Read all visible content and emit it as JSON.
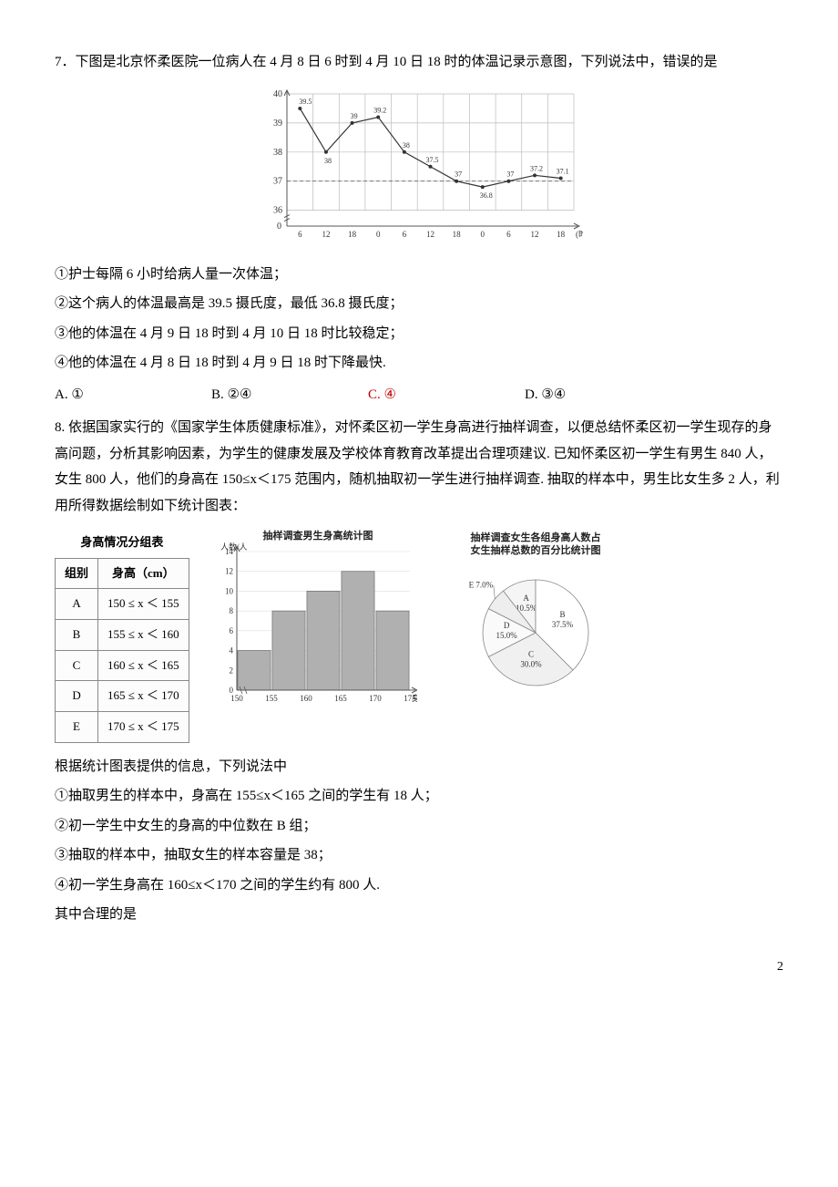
{
  "q7": {
    "prompt": "7．下图是北京怀柔医院一位病人在 4 月 8 日 6 时到 4 月 10 日 18 时的体温记录示意图，下列说法中，错误的是",
    "stmt1": "①护士每隔 6 小时给病人量一次体温；",
    "stmt2": "②这个病人的体温最高是 39.5 摄氏度，最低 36.8 摄氏度；",
    "stmt3": "③他的体温在 4 月 9 日 18 时到 4 月 10 日 18 时比较稳定；",
    "stmt4": "④他的体温在 4 月 8 日 18 时到 4 月 9 日 18 时下降最快.",
    "optA": "A. ①",
    "optB": "B. ②④",
    "optC": "C. ④",
    "optD": "D.  ③④",
    "chart": {
      "type": "line",
      "x_unit_label": "(时)",
      "x_ticks": [
        "6",
        "12",
        "18",
        "0",
        "6",
        "12",
        "18",
        "0",
        "6",
        "12",
        "18"
      ],
      "y_ticks": [
        0,
        36,
        37,
        38,
        39,
        40
      ],
      "y_baseline_dashed": 37,
      "temps": [
        39.5,
        38,
        39,
        39.2,
        38,
        37.5,
        37,
        36.8,
        37,
        37.2,
        37.1
      ],
      "labels": [
        "39.5",
        "38",
        "39",
        "39.2",
        "38",
        "37.5",
        "37",
        "36.8",
        "37",
        "37.2",
        "37.1"
      ],
      "line_color": "#333333",
      "point_radius": 2,
      "grid_color": "#bbbbbb",
      "axis_color": "#555555",
      "background_color": "#ffffff"
    }
  },
  "q8": {
    "prompt": "8. 依据国家实行的《国家学生体质健康标准》，对怀柔区初一学生身高进行抽样调查，以便总结怀柔区初一学生现存的身高问题，分析其影响因素，为学生的健康发展及学校体育教育改革提出合理项建议. 已知怀柔区初一学生有男生 840 人，女生 800 人，他们的身高在 150≤x＜175 范围内，随机抽取初一学生进行抽样调查. 抽取的样本中，男生比女生多 2 人，利用所得数据绘制如下统计图表：",
    "table": {
      "caption": "身高情况分组表",
      "cols": [
        "组别",
        "身高（cm）"
      ],
      "rows": [
        [
          "A",
          "150 ≤ x ＜ 155"
        ],
        [
          "B",
          "155 ≤ x ＜ 160"
        ],
        [
          "C",
          "160 ≤ x ＜ 165"
        ],
        [
          "D",
          "165 ≤ x ＜ 170"
        ],
        [
          "E",
          "170 ≤ x ＜ 175"
        ]
      ]
    },
    "bar_chart": {
      "type": "bar",
      "title": "抽样调查男生身高统计图",
      "x_label": "身高/cm",
      "y_label": "人数/人",
      "x_ticks": [
        "150",
        "155",
        "160",
        "165",
        "170",
        "175"
      ],
      "y_ticks": [
        0,
        2,
        4,
        6,
        8,
        10,
        12,
        14
      ],
      "values": [
        4,
        8,
        10,
        12,
        8
      ],
      "bar_color": "#b0b0b0",
      "bar_border_color": "#777777",
      "grid_color": "#cccccc",
      "axis_color": "#555555",
      "ylim": [
        0,
        14
      ],
      "bar_width": 0.95
    },
    "pie_chart": {
      "type": "pie",
      "title1": "抽样调查女生各组身高人数占",
      "title2": "女生抽样总数的百分比统计图",
      "slices": [
        {
          "label": "A",
          "pct": 10.5,
          "text": "A\n10.5%",
          "color": "#f5f5f5"
        },
        {
          "label": "B",
          "pct": 37.5,
          "text": "B\n37.5%",
          "color": "#ffffff"
        },
        {
          "label": "C",
          "pct": 30.0,
          "text": "C\n30.0%",
          "color": "#f0f0f0"
        },
        {
          "label": "D",
          "pct": 15.0,
          "text": "D\n15.0%",
          "color": "#fafafa"
        },
        {
          "label": "E",
          "pct": 7.0,
          "text": "E 7.0%",
          "color": "#eeeeee"
        }
      ],
      "line_color": "#888888"
    },
    "after": "根据统计图表提供的信息，下列说法中",
    "stmt1": "①抽取男生的样本中，身高在 155≤x＜165 之间的学生有 18 人；",
    "stmt2": "②初一学生中女生的身高的中位数在 B 组；",
    "stmt3": "③抽取的样本中，抽取女生的样本容量是 38；",
    "stmt4": "④初一学生身高在 160≤x＜170 之间的学生约有 800 人.",
    "closing": "其中合理的是"
  },
  "page": "2"
}
